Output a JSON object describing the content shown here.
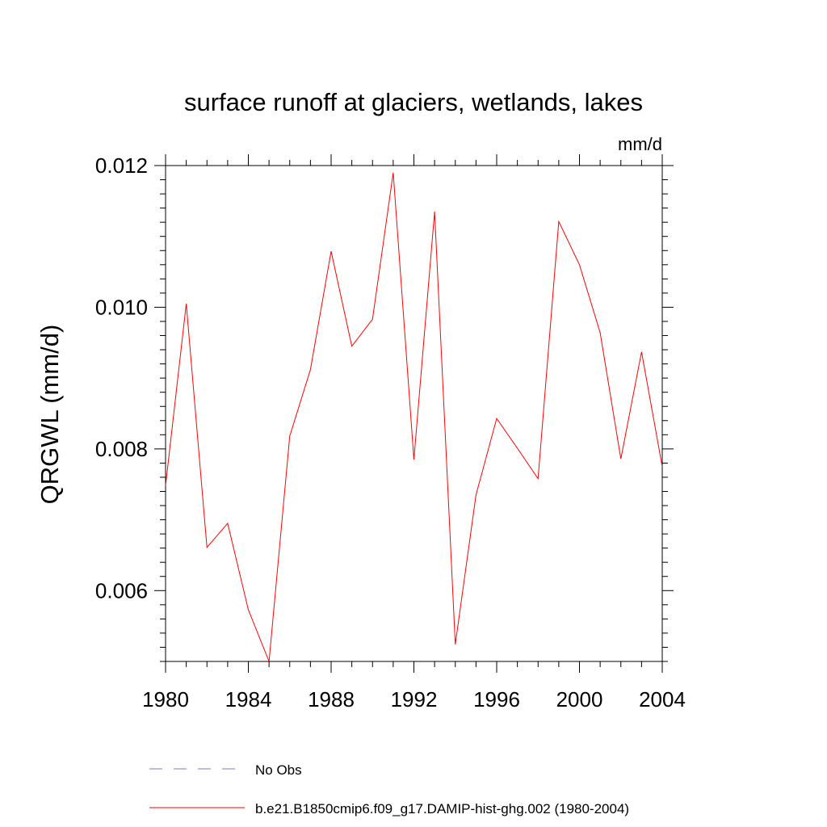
{
  "chart_data": {
    "type": "line",
    "title": "surface runoff at glaciers, wetlands, lakes",
    "units_label": "mm/d",
    "ylabel": "QRGWL  (mm/d)",
    "xlabel": "",
    "xlim": [
      1980,
      2004
    ],
    "ylim": [
      0.005,
      0.012
    ],
    "x_ticks": [
      1980,
      1984,
      1988,
      1992,
      1996,
      2000,
      2004
    ],
    "x_tick_labels": [
      "1980",
      "1984",
      "1988",
      "1992",
      "1996",
      "2000",
      "2004"
    ],
    "y_ticks": [
      0.006,
      0.008,
      0.01,
      0.012
    ],
    "y_tick_labels": [
      "0.006",
      "0.008",
      "0.010",
      "0.012"
    ],
    "series": [
      {
        "name": "b.e21.B1850cmip6.f09_g17.DAMIP-hist-ghg.002 (1980-2004)",
        "color": "#ff0000",
        "x": [
          1980,
          1981,
          1982,
          1983,
          1984,
          1985,
          1986,
          1987,
          1988,
          1989,
          1990,
          1991,
          1992,
          1993,
          1994,
          1995,
          1996,
          1997,
          1998,
          1999,
          2000,
          2001,
          2002,
          2003,
          2004
        ],
        "values": [
          0.00748,
          0.01005,
          0.00661,
          0.00695,
          0.00573,
          0.005,
          0.00818,
          0.00912,
          0.01079,
          0.00945,
          0.00983,
          0.0119,
          0.00785,
          0.01135,
          0.00524,
          0.00735,
          0.00843,
          0.00801,
          0.00758,
          0.01121,
          0.0106,
          0.00964,
          0.00786,
          0.00937,
          0.00775
        ]
      }
    ],
    "legend": {
      "placement": "bottom",
      "entries": [
        {
          "label": "No Obs",
          "color": "#7a7ad6",
          "style": "dashed"
        },
        {
          "label": "b.e21.B1850cmip6.f09_g17.DAMIP-hist-ghg.002 (1980-2004)",
          "color": "#ff0000",
          "style": "solid"
        }
      ]
    }
  }
}
